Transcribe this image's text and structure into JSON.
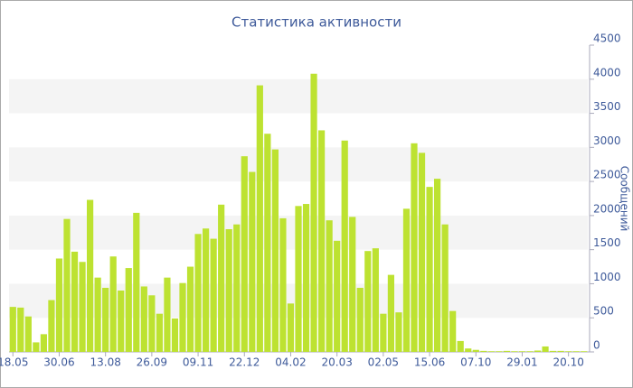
{
  "chart_data": {
    "type": "bar",
    "title": "Статистика активности",
    "y_label": "Сообщений",
    "categories": [
      "18.05",
      null,
      null,
      null,
      null,
      null,
      "30.06",
      null,
      null,
      null,
      null,
      null,
      "13.08",
      null,
      null,
      null,
      null,
      null,
      "26.09",
      null,
      null,
      null,
      null,
      null,
      "09.11",
      null,
      null,
      null,
      null,
      null,
      "22.12",
      null,
      null,
      null,
      null,
      null,
      "04.02",
      null,
      null,
      null,
      null,
      null,
      "20.03",
      null,
      null,
      null,
      null,
      null,
      "02.05",
      null,
      null,
      null,
      null,
      null,
      "15.06",
      null,
      null,
      null,
      null,
      null,
      "07.10",
      null,
      null,
      null,
      null,
      null,
      "29.01",
      null,
      null,
      null,
      null,
      null,
      "20.10",
      null,
      null
    ],
    "values": [
      660,
      650,
      520,
      140,
      260,
      760,
      1370,
      1950,
      1470,
      1320,
      2230,
      1090,
      940,
      1400,
      900,
      1230,
      2040,
      960,
      830,
      560,
      1090,
      490,
      1010,
      1250,
      1730,
      1810,
      1660,
      2160,
      1800,
      1870,
      2870,
      2640,
      3910,
      3200,
      2970,
      1960,
      710,
      2140,
      2170,
      4080,
      3250,
      1930,
      1630,
      3100,
      1980,
      940,
      1480,
      1520,
      560,
      1130,
      580,
      2100,
      3060,
      2920,
      2420,
      2540,
      1870,
      600,
      160,
      50,
      30,
      15,
      10,
      10,
      15,
      10,
      10,
      10,
      20,
      80,
      15,
      15,
      10,
      10,
      10
    ],
    "color": "#bde231",
    "ylim": [
      0,
      4500
    ],
    "yticks": [
      0,
      500,
      1000,
      1500,
      2000,
      2500,
      3000,
      3500,
      4000,
      4500
    ],
    "grid": true
  }
}
